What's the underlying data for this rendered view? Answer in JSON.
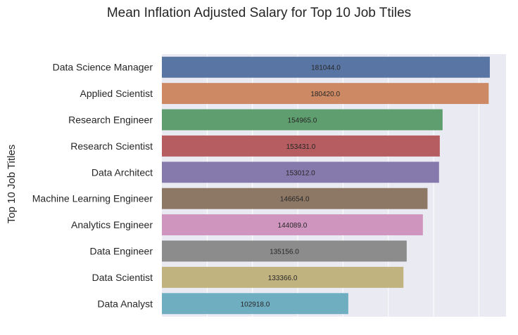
{
  "chart_data": {
    "type": "bar",
    "orientation": "horizontal",
    "title": "Mean Inflation Adjusted Salary for Top 10 Job Ttiles",
    "ylabel": "Top 10 Job Titles",
    "xlabel": "",
    "xlim": [
      0,
      190000
    ],
    "grid": true,
    "categories": [
      "Data Science Manager",
      "Applied Scientist",
      "Research Engineer",
      "Research Scientist",
      "Data Architect",
      "Machine Learning Engineer",
      "Analytics Engineer",
      "Data Engineer",
      "Data Scientist",
      "Data Analyst"
    ],
    "values": [
      181044,
      180420,
      154965,
      153431,
      153012,
      146654,
      144089,
      135156,
      133366,
      102918
    ],
    "data_labels": [
      "181044.0",
      "180420.0",
      "154965.0",
      "153431.0",
      "153012.0",
      "146654.0",
      "144089.0",
      "135156.0",
      "133366.0",
      "102918.0"
    ],
    "colors": [
      "#5975a4",
      "#cc8963",
      "#5f9e6e",
      "#b55d60",
      "#857aab",
      "#8d7866",
      "#d095bf",
      "#8c8c8c",
      "#c1b37f",
      "#6fadc1"
    ],
    "background": "#eaeaf2"
  }
}
